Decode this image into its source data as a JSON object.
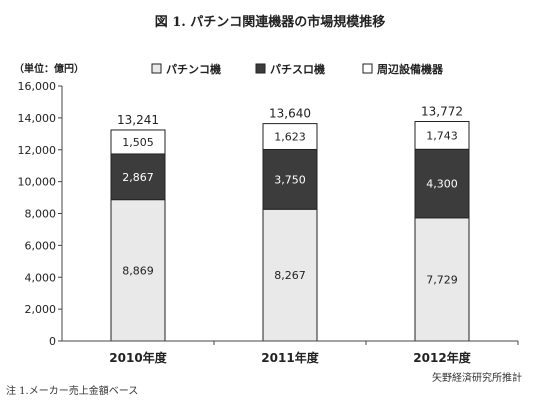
{
  "chart_data": {
    "type": "bar",
    "stacked": true,
    "title": "図 1. パチンコ関連機器の市場規模推移",
    "unit_label": "（単位：億円）",
    "categories": [
      "2010年度",
      "2011年度",
      "2012年度"
    ],
    "series": [
      {
        "name": "パチンコ機",
        "values": [
          8869,
          8267,
          7729
        ],
        "labels": [
          "8,869",
          "8,267",
          "7,729"
        ],
        "color": "#e9e9e9",
        "text_color": "#222222"
      },
      {
        "name": "パチスロ機",
        "values": [
          2867,
          3750,
          4300
        ],
        "labels": [
          "2,867",
          "3,750",
          "4,300"
        ],
        "color": "#3c3c3c",
        "text_color": "#ffffff"
      },
      {
        "name": "周辺設備機器",
        "values": [
          1505,
          1623,
          1743
        ],
        "labels": [
          "1,505",
          "1,623",
          "1,743"
        ],
        "color": "#ffffff",
        "text_color": "#222222"
      }
    ],
    "totals": [
      13241,
      13640,
      13772
    ],
    "total_labels": [
      "13,241",
      "13,640",
      "13,772"
    ],
    "ylim": [
      0,
      16000
    ],
    "yticks": [
      0,
      2000,
      4000,
      6000,
      8000,
      10000,
      12000,
      14000,
      16000
    ],
    "ytick_labels": [
      "0",
      "2,000",
      "4,000",
      "6,000",
      "8,000",
      "10,000",
      "12,000",
      "14,000",
      "16,000"
    ],
    "legend_position": "top",
    "grid": false,
    "source": "矢野経済研究所推計",
    "note": "注 1.メーカー売上金額ベース"
  }
}
